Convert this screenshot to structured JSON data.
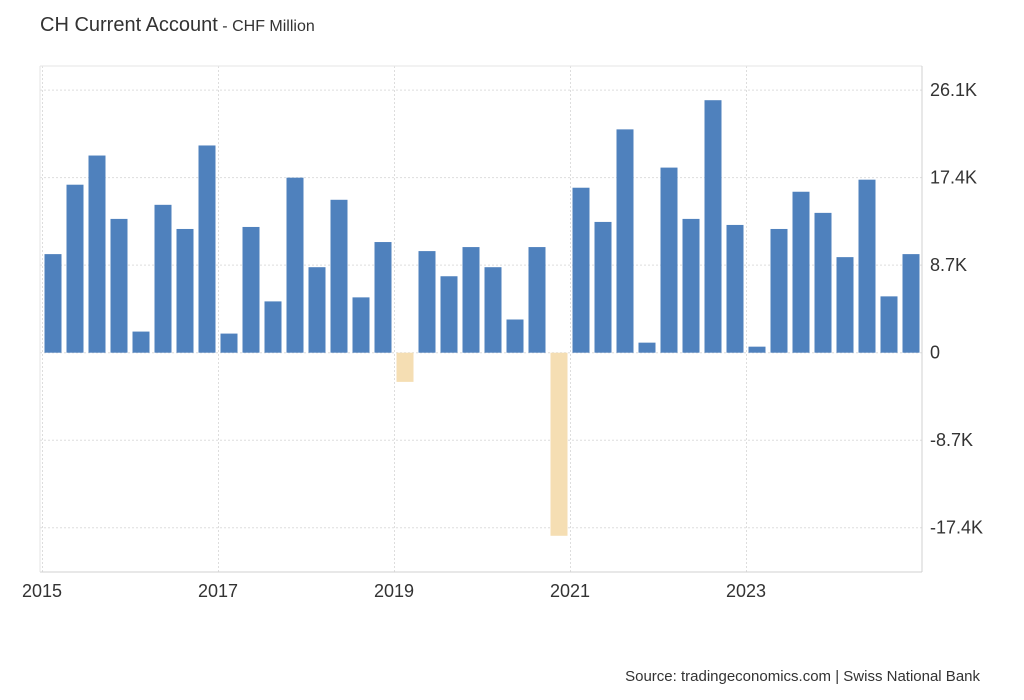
{
  "header": {
    "title": "CH Current Account",
    "separator": " - ",
    "subtitle": "CHF Million"
  },
  "footer": {
    "source": "Source: tradingeconomics.com | Swiss National Bank"
  },
  "chart_data": {
    "type": "bar",
    "x_start": "2015 Q1",
    "frequency": "quarterly",
    "values": [
      9800,
      16700,
      19600,
      13300,
      2100,
      14700,
      12300,
      20600,
      1900,
      12500,
      5100,
      17400,
      8500,
      15200,
      5500,
      11000,
      -2900,
      10100,
      7600,
      10500,
      8500,
      3300,
      10500,
      -18200,
      16400,
      13000,
      22200,
      1000,
      18400,
      13300,
      25100,
      12700,
      600,
      12300,
      16000,
      13900,
      9500,
      17200,
      5600,
      9800
    ],
    "ylim": [
      -21800,
      28500
    ],
    "yticks": [
      {
        "value": 26100,
        "label": "26.1K"
      },
      {
        "value": 17400,
        "label": "17.4K"
      },
      {
        "value": 8700,
        "label": "8.7K"
      },
      {
        "value": 0,
        "label": "0"
      },
      {
        "value": -8700,
        "label": "-8.7K"
      },
      {
        "value": -17400,
        "label": "-17.4K"
      }
    ],
    "xticks": [
      {
        "index": 0,
        "label": "2015"
      },
      {
        "index": 8,
        "label": "2017"
      },
      {
        "index": 16,
        "label": "2019"
      },
      {
        "index": 24,
        "label": "2021"
      },
      {
        "index": 32,
        "label": "2023"
      }
    ],
    "colors": {
      "positive": "#4f81bd",
      "negative": "#f5deb3"
    },
    "grid": true,
    "legend": "none"
  }
}
